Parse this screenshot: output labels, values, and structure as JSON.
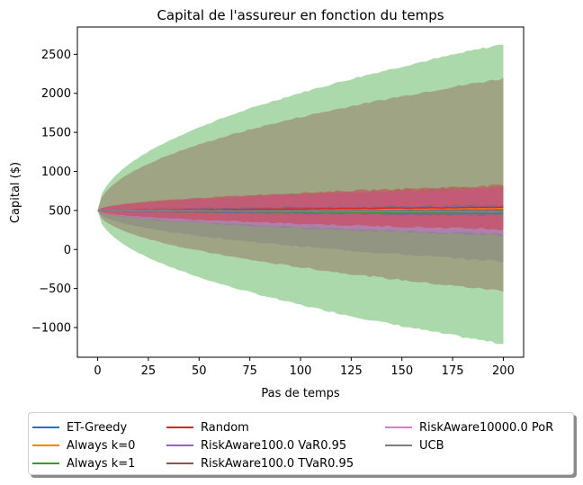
{
  "chart_data": {
    "type": "area",
    "title": "Capital de l'assureur en fonction du temps",
    "xlabel": "Pas de temps",
    "ylabel": "Capital ($)",
    "xlim": [
      -10,
      210
    ],
    "ylim": [
      -1380,
      2850
    ],
    "xticks": [
      0,
      25,
      50,
      75,
      100,
      125,
      150,
      175,
      200
    ],
    "yticks": [
      -1000,
      -500,
      0,
      500,
      1000,
      1500,
      2000,
      2500
    ],
    "ytick_labels": [
      "−1000",
      "−500",
      "0",
      "500",
      "1000",
      "1500",
      "2000",
      "2500"
    ],
    "grid": false,
    "legend_position": "below, 3 columns",
    "x_end": 200,
    "start_value": 500,
    "series": [
      {
        "name": "ET-Greedy",
        "color": "#1f77b4",
        "mean_end": 500,
        "band_upper_end": 560,
        "band_lower_end": 440
      },
      {
        "name": "Always k=0",
        "color": "#ff7f0e",
        "mean_end": 530,
        "band_upper_end": 540,
        "band_lower_end": 500
      },
      {
        "name": "Always k=1",
        "color": "#2ca02c",
        "mean_end": 460,
        "band_upper_end": 2630,
        "band_lower_end": -1210
      },
      {
        "name": "Random",
        "color": "#d62728",
        "mean_end": 540,
        "band_upper_end": 820,
        "band_lower_end": 260
      },
      {
        "name": "RiskAware100.0 VaR0.95",
        "color": "#9467bd",
        "mean_end": 480,
        "band_upper_end": 780,
        "band_lower_end": 180
      },
      {
        "name": "RiskAware100.0 TVaR0.95",
        "color": "#8c564b",
        "mean_end": 500,
        "band_upper_end": 2190,
        "band_lower_end": -530
      },
      {
        "name": "RiskAware10000.0 PoR",
        "color": "#e377c2",
        "mean_end": 490,
        "band_upper_end": 790,
        "band_lower_end": 200
      },
      {
        "name": "UCB",
        "color": "#7f7f7f",
        "mean_end": 490,
        "band_upper_end": 800,
        "band_lower_end": -150
      }
    ]
  }
}
